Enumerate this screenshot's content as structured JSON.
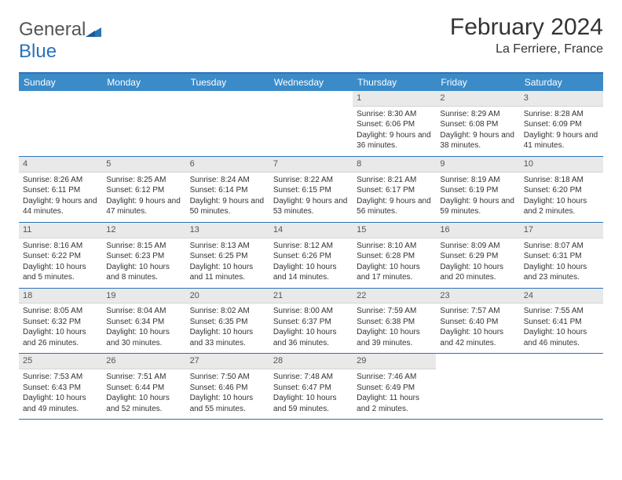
{
  "logo": {
    "text_a": "General",
    "text_b": "Blue"
  },
  "title": "February 2024",
  "location": "La Ferriere, France",
  "colors": {
    "brand": "#2a73b8",
    "header_bg": "#3b8bc9",
    "daynum_bg": "#e9e9e9",
    "text": "#333333"
  },
  "day_names": [
    "Sunday",
    "Monday",
    "Tuesday",
    "Wednesday",
    "Thursday",
    "Friday",
    "Saturday"
  ],
  "weeks": [
    [
      null,
      null,
      null,
      null,
      {
        "n": "1",
        "sunrise": "8:30 AM",
        "sunset": "6:06 PM",
        "daylight": "9 hours and 36 minutes."
      },
      {
        "n": "2",
        "sunrise": "8:29 AM",
        "sunset": "6:08 PM",
        "daylight": "9 hours and 38 minutes."
      },
      {
        "n": "3",
        "sunrise": "8:28 AM",
        "sunset": "6:09 PM",
        "daylight": "9 hours and 41 minutes."
      }
    ],
    [
      {
        "n": "4",
        "sunrise": "8:26 AM",
        "sunset": "6:11 PM",
        "daylight": "9 hours and 44 minutes."
      },
      {
        "n": "5",
        "sunrise": "8:25 AM",
        "sunset": "6:12 PM",
        "daylight": "9 hours and 47 minutes."
      },
      {
        "n": "6",
        "sunrise": "8:24 AM",
        "sunset": "6:14 PM",
        "daylight": "9 hours and 50 minutes."
      },
      {
        "n": "7",
        "sunrise": "8:22 AM",
        "sunset": "6:15 PM",
        "daylight": "9 hours and 53 minutes."
      },
      {
        "n": "8",
        "sunrise": "8:21 AM",
        "sunset": "6:17 PM",
        "daylight": "9 hours and 56 minutes."
      },
      {
        "n": "9",
        "sunrise": "8:19 AM",
        "sunset": "6:19 PM",
        "daylight": "9 hours and 59 minutes."
      },
      {
        "n": "10",
        "sunrise": "8:18 AM",
        "sunset": "6:20 PM",
        "daylight": "10 hours and 2 minutes."
      }
    ],
    [
      {
        "n": "11",
        "sunrise": "8:16 AM",
        "sunset": "6:22 PM",
        "daylight": "10 hours and 5 minutes."
      },
      {
        "n": "12",
        "sunrise": "8:15 AM",
        "sunset": "6:23 PM",
        "daylight": "10 hours and 8 minutes."
      },
      {
        "n": "13",
        "sunrise": "8:13 AM",
        "sunset": "6:25 PM",
        "daylight": "10 hours and 11 minutes."
      },
      {
        "n": "14",
        "sunrise": "8:12 AM",
        "sunset": "6:26 PM",
        "daylight": "10 hours and 14 minutes."
      },
      {
        "n": "15",
        "sunrise": "8:10 AM",
        "sunset": "6:28 PM",
        "daylight": "10 hours and 17 minutes."
      },
      {
        "n": "16",
        "sunrise": "8:09 AM",
        "sunset": "6:29 PM",
        "daylight": "10 hours and 20 minutes."
      },
      {
        "n": "17",
        "sunrise": "8:07 AM",
        "sunset": "6:31 PM",
        "daylight": "10 hours and 23 minutes."
      }
    ],
    [
      {
        "n": "18",
        "sunrise": "8:05 AM",
        "sunset": "6:32 PM",
        "daylight": "10 hours and 26 minutes."
      },
      {
        "n": "19",
        "sunrise": "8:04 AM",
        "sunset": "6:34 PM",
        "daylight": "10 hours and 30 minutes."
      },
      {
        "n": "20",
        "sunrise": "8:02 AM",
        "sunset": "6:35 PM",
        "daylight": "10 hours and 33 minutes."
      },
      {
        "n": "21",
        "sunrise": "8:00 AM",
        "sunset": "6:37 PM",
        "daylight": "10 hours and 36 minutes."
      },
      {
        "n": "22",
        "sunrise": "7:59 AM",
        "sunset": "6:38 PM",
        "daylight": "10 hours and 39 minutes."
      },
      {
        "n": "23",
        "sunrise": "7:57 AM",
        "sunset": "6:40 PM",
        "daylight": "10 hours and 42 minutes."
      },
      {
        "n": "24",
        "sunrise": "7:55 AM",
        "sunset": "6:41 PM",
        "daylight": "10 hours and 46 minutes."
      }
    ],
    [
      {
        "n": "25",
        "sunrise": "7:53 AM",
        "sunset": "6:43 PM",
        "daylight": "10 hours and 49 minutes."
      },
      {
        "n": "26",
        "sunrise": "7:51 AM",
        "sunset": "6:44 PM",
        "daylight": "10 hours and 52 minutes."
      },
      {
        "n": "27",
        "sunrise": "7:50 AM",
        "sunset": "6:46 PM",
        "daylight": "10 hours and 55 minutes."
      },
      {
        "n": "28",
        "sunrise": "7:48 AM",
        "sunset": "6:47 PM",
        "daylight": "10 hours and 59 minutes."
      },
      {
        "n": "29",
        "sunrise": "7:46 AM",
        "sunset": "6:49 PM",
        "daylight": "11 hours and 2 minutes."
      },
      null,
      null
    ]
  ],
  "labels": {
    "sunrise": "Sunrise:",
    "sunset": "Sunset:",
    "daylight": "Daylight:"
  }
}
